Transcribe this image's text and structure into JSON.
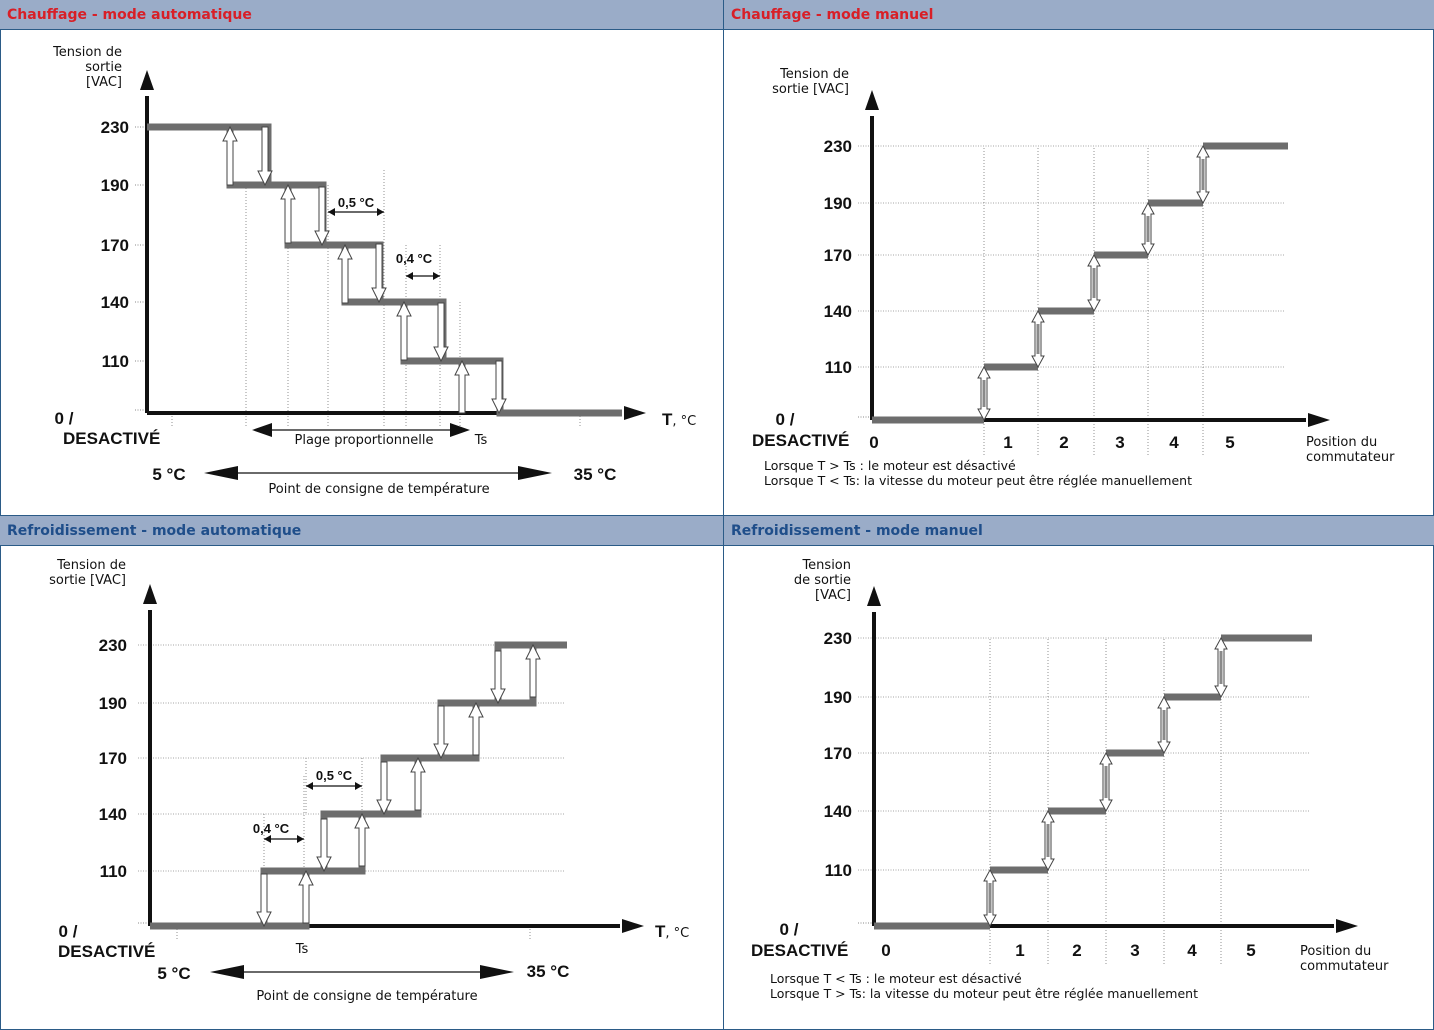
{
  "panels": [
    {
      "id": "heat_auto",
      "title": "Chauffage - mode automatique",
      "kind": "auto",
      "y_label_lines": [
        "Tension de",
        "sortie",
        "[VAC]"
      ],
      "y_ticks": [
        "230",
        "190",
        "170",
        "140",
        "110"
      ],
      "zero_label": "0 /",
      "off_label": "DESACTIVÉ",
      "x_axis_bold": "T",
      "x_axis_unit": ", °C",
      "step_values": [
        230,
        190,
        170,
        140,
        110,
        0
      ],
      "hysteresis_labels": [
        "0,5 °C",
        "0,4 °C"
      ],
      "band_label": "Plage proportionnelle",
      "ts_label": "Ts",
      "range_min": "5 °C",
      "range_max": "35 °C",
      "range_label": "Point de consigne de température"
    },
    {
      "id": "heat_manual",
      "title": "Chauffage - mode manuel",
      "kind": "manual",
      "y_label_lines": [
        "Tension de",
        "sortie [VAC]"
      ],
      "y_ticks": [
        "230",
        "190",
        "170",
        "140",
        "110"
      ],
      "zero_label": "0 /",
      "off_label": "DESACTIVÉ",
      "positions": [
        "0",
        "1",
        "2",
        "3",
        "4",
        "5"
      ],
      "x_label_lines": [
        "Position du",
        "commutateur"
      ],
      "notes": [
        "Lorsque T > Ts : le moteur est désactivé",
        "Lorsque T < Ts: la vitesse du moteur peut être réglée manuellement"
      ]
    },
    {
      "id": "cool_auto",
      "title": "Refroidissement - mode automatique",
      "kind": "auto",
      "y_label_lines": [
        "Tension de",
        "sortie [VAC]"
      ],
      "y_ticks": [
        "230",
        "190",
        "170",
        "140",
        "110"
      ],
      "zero_label": "0 /",
      "off_label": "DESACTIVÉ",
      "x_axis_bold": "T",
      "x_axis_unit": ", °C",
      "step_values": [
        0,
        110,
        140,
        170,
        190,
        230
      ],
      "hysteresis_labels": [
        "0,5 °C",
        "0,4 °C"
      ],
      "ts_label": "Ts",
      "range_min": "5 °C",
      "range_max": "35 °C",
      "range_label": "Point de consigne de température"
    },
    {
      "id": "cool_manual",
      "title": "Refroidissement - mode manuel",
      "kind": "manual",
      "y_label_lines": [
        "Tension",
        "de sortie",
        "[VAC]"
      ],
      "y_ticks": [
        "230",
        "190",
        "170",
        "140",
        "110"
      ],
      "zero_label": "0 /",
      "off_label": "DESACTIVÉ",
      "positions": [
        "0",
        "1",
        "2",
        "3",
        "4",
        "5"
      ],
      "x_label_lines": [
        "Position du",
        "commutateur"
      ],
      "notes": [
        "Lorsque T < Ts : le moteur est désactivé",
        "Lorsque T > Ts: la vitesse du moteur peut être réglée manuellement"
      ]
    }
  ],
  "colors": {
    "heat_title": "#d81f27",
    "cool_title": "#1f4e8a",
    "header_bg": "#9aacc8",
    "step_line": "#6d6d6d",
    "axis": "#111111"
  }
}
